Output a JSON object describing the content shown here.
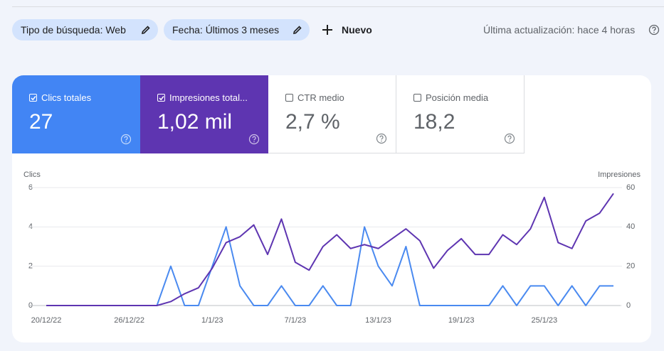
{
  "filters": [
    "Tipo de búsqueda: Web",
    "Fecha: Últimos 3 meses"
  ],
  "new_button": "Nuevo",
  "last_update": "Última actualización: hace 4 horas",
  "metrics": [
    {
      "label": "Clics totales",
      "value": "27",
      "checked": true
    },
    {
      "label": "Impresiones total...",
      "value": "1,02 mil",
      "checked": true
    },
    {
      "label": "CTR medio",
      "value": "2,7 %",
      "checked": false
    },
    {
      "label": "Posición media",
      "value": "18,2",
      "checked": false
    }
  ],
  "chart_data": {
    "type": "line",
    "ylabel": "Clics",
    "y2label": "Impresiones",
    "categories": [
      "20/12/22",
      null,
      null,
      null,
      null,
      null,
      "26/12/22",
      null,
      null,
      null,
      null,
      null,
      "1/1/23",
      null,
      null,
      null,
      null,
      null,
      "7/1/23",
      null,
      null,
      null,
      null,
      null,
      "13/1/23",
      null,
      null,
      null,
      null,
      null,
      "19/1/23",
      null,
      null,
      null,
      null,
      null,
      "25/1/23",
      null,
      null,
      null,
      null,
      null
    ],
    "ylim": [
      0,
      6
    ],
    "yticks": [
      0,
      2,
      4,
      6
    ],
    "y2lim": [
      0,
      60
    ],
    "y2ticks": [
      0,
      20,
      40,
      60
    ],
    "grid": true,
    "series": [
      {
        "name": "Clics",
        "color": "#4a8af0",
        "values": [
          0,
          0,
          0,
          0,
          0,
          0,
          0,
          0,
          0,
          2,
          0,
          0,
          2,
          4,
          1,
          0,
          0,
          1,
          0,
          0,
          1,
          0,
          0,
          4,
          2,
          1,
          3,
          0,
          0,
          0,
          0,
          0,
          0,
          1,
          0,
          1,
          1,
          0,
          1,
          0,
          1,
          1
        ]
      },
      {
        "name": "Impresiones",
        "color": "#5e35b1",
        "axis": "y2",
        "values": [
          0,
          0,
          0,
          0,
          0,
          0,
          0,
          0,
          0,
          2,
          6,
          9,
          19,
          32,
          35,
          41,
          26,
          44,
          22,
          18,
          30,
          36,
          29,
          31,
          29,
          34,
          39,
          33,
          19,
          28,
          34,
          26,
          26,
          36,
          31,
          39,
          55,
          32,
          29,
          43,
          47,
          57
        ]
      }
    ]
  }
}
